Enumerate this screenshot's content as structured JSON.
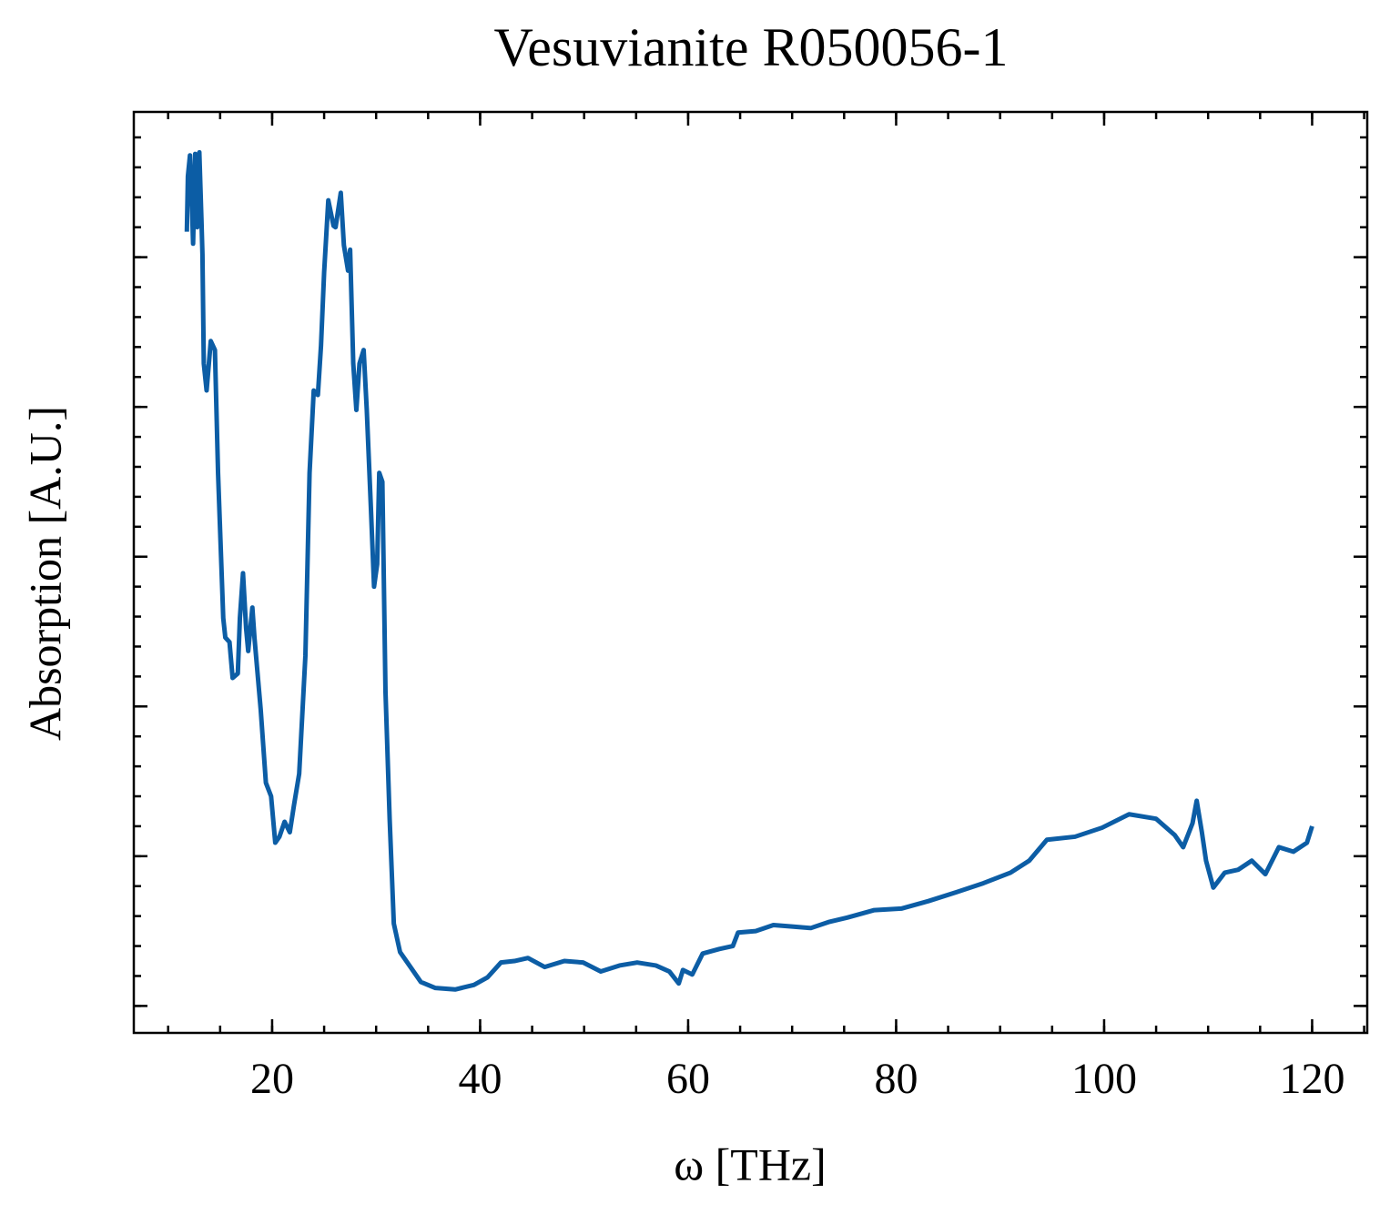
{
  "chart_data": {
    "type": "line",
    "title": "Vesuvianite R050056-1",
    "x_label": "ω [THz]",
    "y_label": "Absorption [A.U.]",
    "xlim": [
      6.7,
      125.3
    ],
    "xticks": [
      20,
      40,
      60,
      80,
      100,
      120
    ],
    "ylim": [
      -0.18,
      5.97
    ],
    "yticks": [
      0,
      1,
      2,
      3,
      4,
      5
    ],
    "grid": false,
    "series": [
      {
        "name": "Vesuvianite R050056-1",
        "color": "#0c5da5",
        "x": [
          11.8,
          11.9,
          12.1,
          12.3,
          12.4,
          12.6,
          12.8,
          12.9,
          13.0,
          13.2,
          13.3,
          13.43,
          13.7,
          14.1,
          14.5,
          14.8,
          15.3,
          15.5,
          15.9,
          16.2,
          16.7,
          16.9,
          17.2,
          17.5,
          17.7,
          18.1,
          18.3,
          18.6,
          18.9,
          19.4,
          19.9,
          20.3,
          20.7,
          21.2,
          21.7,
          22.1,
          22.6,
          23.2,
          23.6,
          24.0,
          24.4,
          24.7,
          25.0,
          25.4,
          25.9,
          26.1,
          26.6,
          26.9,
          27.3,
          27.5,
          27.8,
          28.1,
          28.4,
          28.8,
          29.1,
          29.5,
          29.8,
          30.1,
          30.3,
          30.6,
          30.9,
          31.3,
          31.7,
          32.3,
          33.2,
          34.3,
          35.7,
          37.6,
          39.4,
          40.7,
          42.0,
          43.3,
          44.6,
          46.2,
          48.1,
          49.9,
          51.6,
          53.4,
          55.1,
          56.9,
          58.2,
          59.1,
          59.5,
          60.4,
          61.4,
          63.0,
          64.3,
          64.8,
          66.5,
          68.2,
          70.0,
          71.8,
          73.5,
          75.3,
          77.9,
          80.5,
          83.1,
          85.8,
          88.4,
          91.0,
          92.8,
          94.5,
          97.2,
          99.8,
          102.4,
          105.0,
          106.8,
          107.6,
          108.5,
          108.9,
          109.4,
          109.8,
          110.5,
          111.6,
          112.9,
          114.2,
          115.5,
          116.8,
          118.2,
          119.5,
          120.0
        ],
        "values": [
          5.17,
          5.54,
          5.68,
          5.32,
          5.09,
          5.69,
          5.2,
          5.57,
          5.7,
          5.26,
          5.02,
          4.29,
          4.11,
          4.44,
          4.38,
          3.56,
          2.59,
          2.46,
          2.43,
          2.19,
          2.22,
          2.59,
          2.89,
          2.52,
          2.37,
          2.66,
          2.46,
          2.22,
          1.98,
          1.49,
          1.4,
          1.09,
          1.13,
          1.23,
          1.16,
          1.34,
          1.55,
          2.34,
          3.56,
          4.11,
          4.08,
          4.41,
          4.9,
          5.38,
          5.21,
          5.2,
          5.43,
          5.08,
          4.91,
          5.05,
          4.29,
          3.98,
          4.29,
          4.38,
          3.98,
          3.32,
          2.8,
          2.95,
          3.56,
          3.5,
          2.1,
          1.25,
          0.55,
          0.36,
          0.27,
          0.16,
          0.12,
          0.11,
          0.14,
          0.19,
          0.29,
          0.3,
          0.32,
          0.26,
          0.3,
          0.29,
          0.23,
          0.27,
          0.29,
          0.27,
          0.23,
          0.15,
          0.24,
          0.21,
          0.35,
          0.38,
          0.4,
          0.49,
          0.5,
          0.54,
          0.53,
          0.52,
          0.56,
          0.59,
          0.64,
          0.65,
          0.7,
          0.76,
          0.82,
          0.89,
          0.97,
          1.11,
          1.13,
          1.19,
          1.28,
          1.25,
          1.14,
          1.06,
          1.22,
          1.37,
          1.16,
          0.97,
          0.79,
          0.89,
          0.91,
          0.97,
          0.88,
          1.06,
          1.03,
          1.09,
          1.2
        ]
      }
    ]
  }
}
